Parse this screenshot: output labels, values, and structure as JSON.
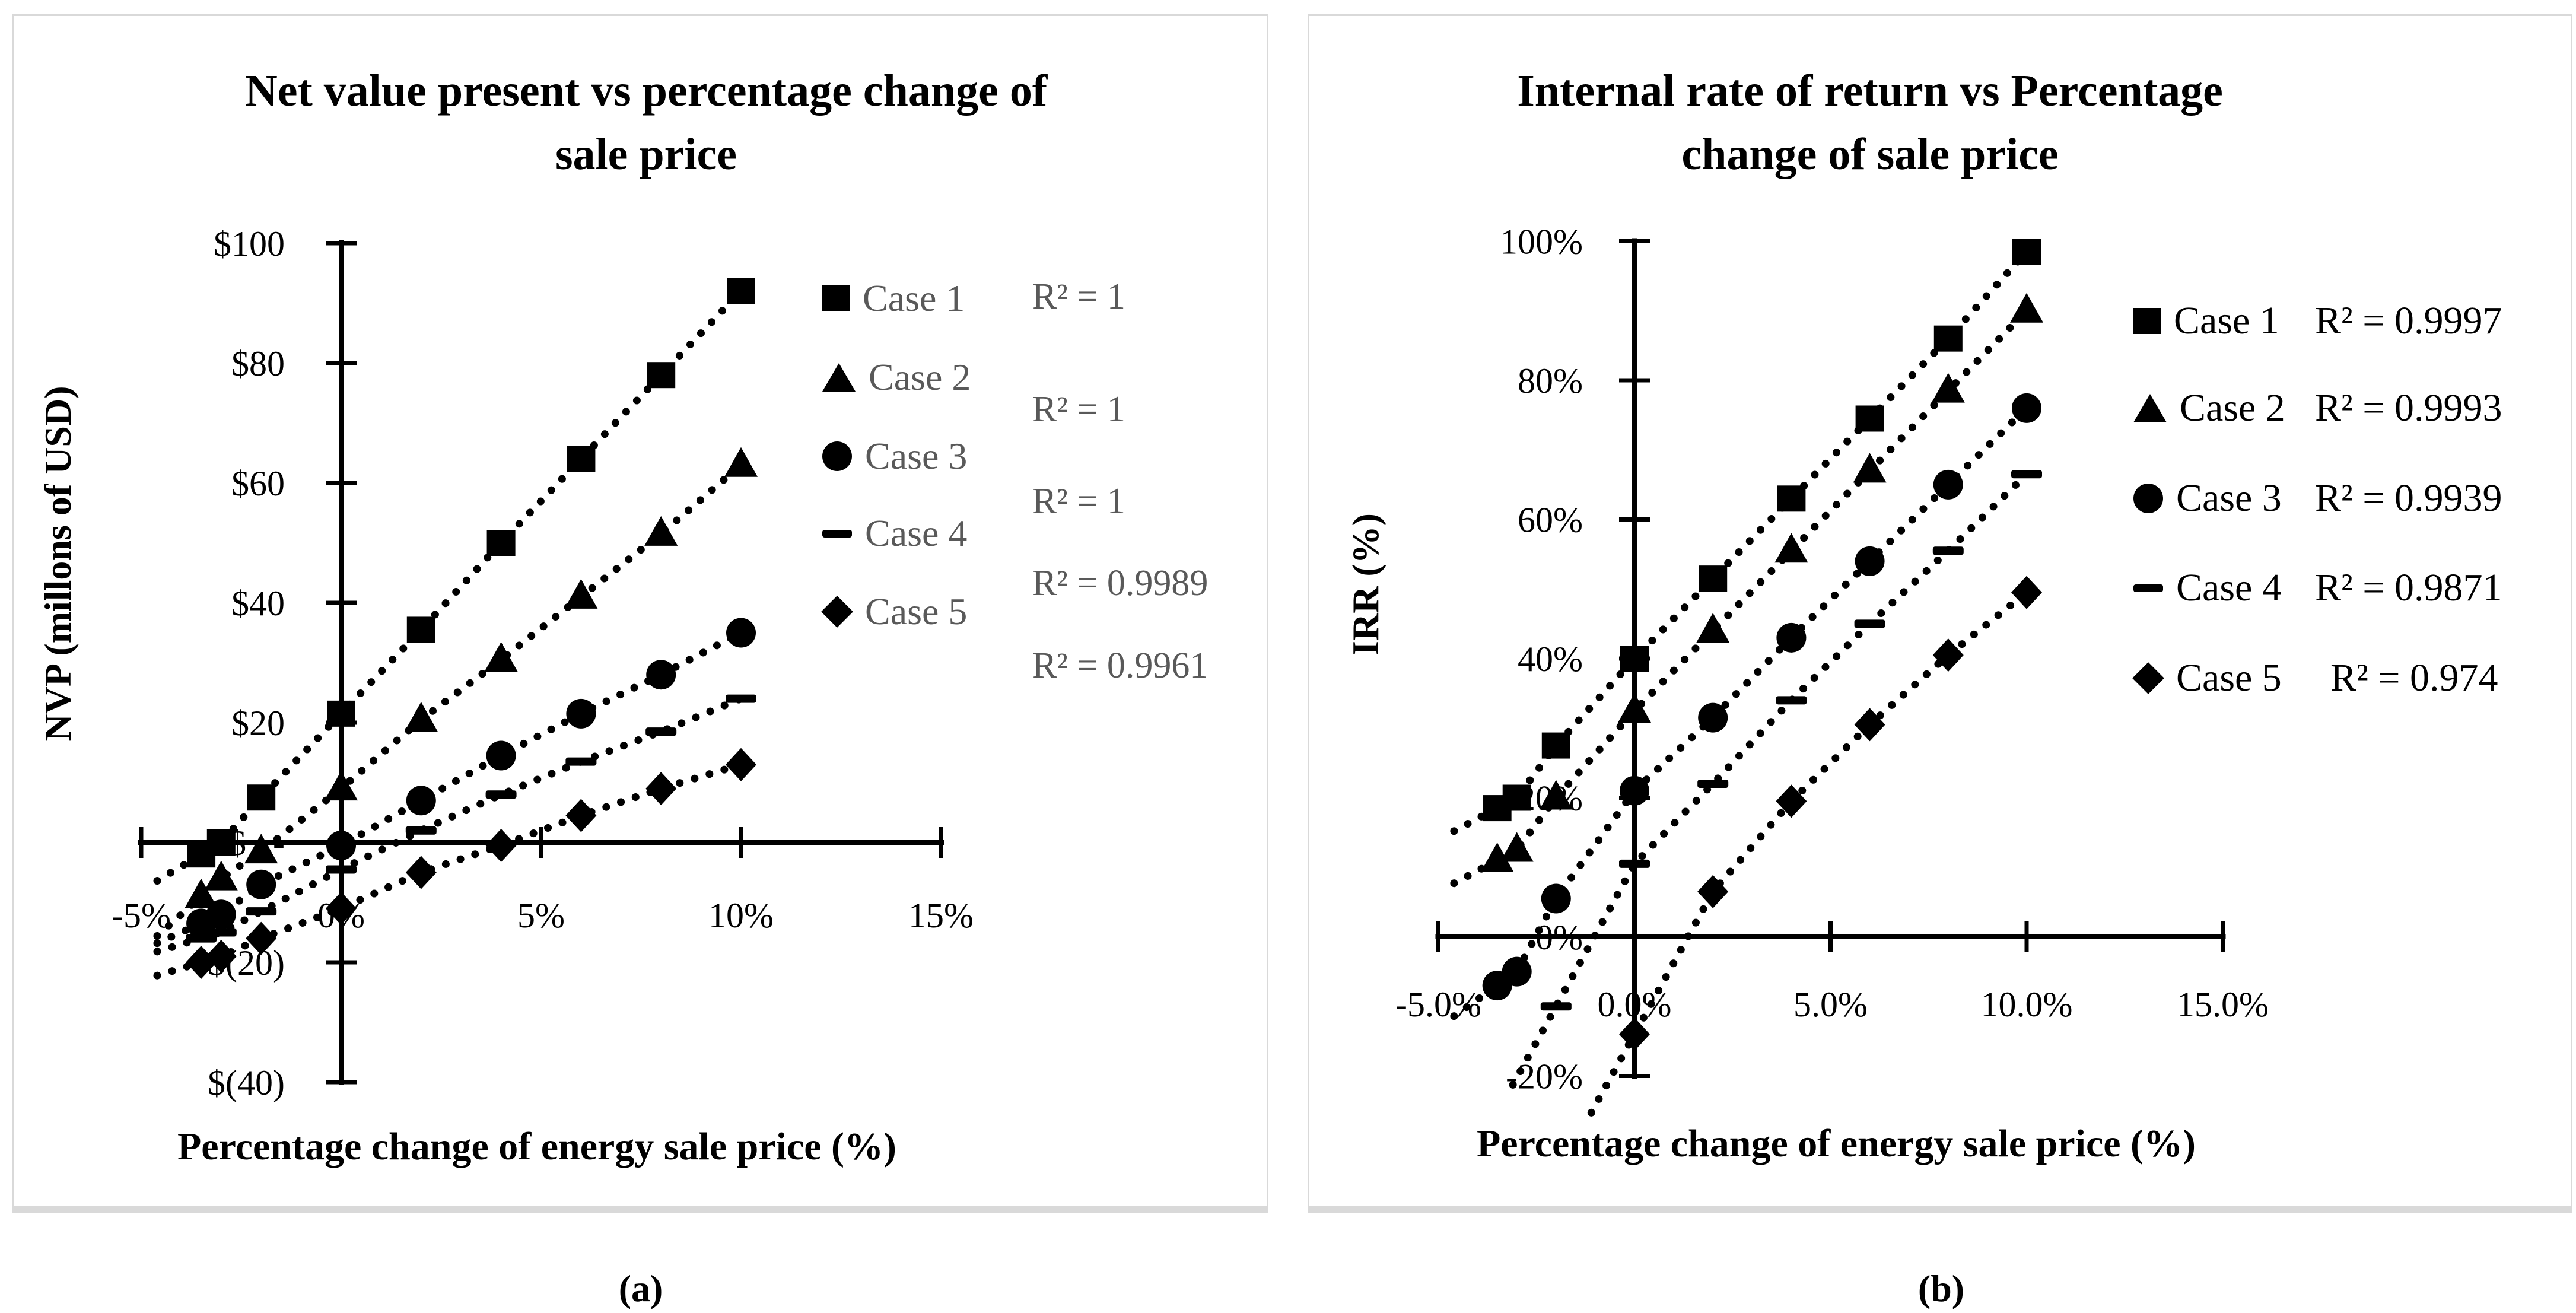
{
  "colors": {
    "marker": "#000000",
    "axis": "#000000",
    "legend_text_left": "#595959",
    "legend_text_right": "#000000",
    "panel_border": "#d9d9d9",
    "background": "#ffffff"
  },
  "captions": {
    "panel_a": "(a)",
    "panel_b": "(b)"
  },
  "chart_data": [
    {
      "type": "scatter",
      "panel": "a",
      "title": "Net value present vs percentage change of sale price",
      "title_lines": [
        "Net value present vs percentage change of",
        "sale price"
      ],
      "xlabel": "Percentage change of energy sale price (%)",
      "ylabel": "NVP (millons of USD)",
      "legend_position": "right-inside",
      "grid": false,
      "xlim": [
        -5,
        15
      ],
      "ylim": [
        -40,
        100
      ],
      "x_tick_labels": [
        "-5%",
        "0%",
        "5%",
        "10%",
        "15%"
      ],
      "x_tick_values": [
        -5,
        0,
        5,
        10,
        15
      ],
      "y_tick_labels": [
        "$100",
        "$80",
        "$60",
        "$40",
        "$20",
        "$   -",
        "$(20)",
        "$(40)"
      ],
      "y_tick_values": [
        100,
        80,
        60,
        40,
        20,
        0,
        -20,
        -40
      ],
      "x": [
        -3.5,
        -3,
        -2,
        0,
        2,
        4,
        6,
        8,
        10
      ],
      "series": [
        {
          "name": "Case 1",
          "marker": "square",
          "r2_label": "R² = 1",
          "values": [
            -2,
            0,
            7.5,
            21.5,
            35.5,
            50,
            64,
            78,
            92
          ]
        },
        {
          "name": "Case 2",
          "marker": "triangle",
          "r2_label": "R² = 1",
          "values": [
            -9,
            -6,
            -1.5,
            9,
            20.5,
            30.5,
            41,
            51.5,
            63
          ]
        },
        {
          "name": "Case 3",
          "marker": "circle",
          "r2_label": "R² = 1",
          "values": [
            -13.5,
            -12,
            -7,
            -0.5,
            7,
            14.5,
            21.5,
            28,
            35
          ]
        },
        {
          "name": "Case 4",
          "marker": "dash",
          "r2_label": "R² = 0.9989",
          "values": [
            -16,
            -15,
            -11.5,
            -4.5,
            2,
            8,
            13.5,
            18.5,
            24
          ]
        },
        {
          "name": "Case 5",
          "marker": "diamond",
          "r2_label": "R² = 0.9961",
          "values": [
            -20,
            -19,
            -16,
            -11,
            -5,
            -0.5,
            4.5,
            9,
            13
          ]
        }
      ]
    },
    {
      "type": "scatter",
      "panel": "b",
      "title": "Internal rate of return vs Percentage change of sale price",
      "title_lines": [
        "Internal rate of return vs Percentage",
        "change of sale price"
      ],
      "xlabel": "Percentage change of energy sale price (%)",
      "ylabel": "IRR (%)",
      "legend_position": "right-inside",
      "grid": false,
      "xlim": [
        -5,
        15
      ],
      "ylim": [
        -20,
        100
      ],
      "x_tick_labels": [
        "-5.0%",
        "0.0%",
        "5.0%",
        "10.0%",
        "15.0%"
      ],
      "x_tick_values": [
        -5,
        0,
        5,
        10,
        15
      ],
      "y_tick_labels": [
        "100%",
        "80%",
        "60%",
        "40%",
        "20%",
        "0%",
        "-20%"
      ],
      "y_tick_values": [
        100,
        80,
        60,
        40,
        20,
        0,
        -20
      ],
      "x": [
        -3.5,
        -3,
        -2,
        0,
        2,
        4,
        6,
        8,
        10
      ],
      "series": [
        {
          "name": "Case 1",
          "marker": "square",
          "r2_label": "R² = 0.9997",
          "values": [
            18.5,
            20,
            27.5,
            40,
            51.5,
            63,
            74.5,
            86,
            98.5
          ]
        },
        {
          "name": "Case 2",
          "marker": "triangle",
          "r2_label": "R² = 0.9993",
          "values": [
            11,
            12.5,
            20,
            32.5,
            44,
            55.5,
            67,
            78.5,
            90
          ]
        },
        {
          "name": "Case 3",
          "marker": "circle",
          "r2_label": "R² = 0.9939",
          "values": [
            -7,
            -5,
            5.5,
            21,
            31.5,
            43,
            54,
            65,
            76
          ]
        },
        {
          "name": "Case 4",
          "marker": "dash",
          "r2_label": "R² = 0.9871",
          "values": [
            null,
            null,
            -10,
            10.5,
            22,
            34,
            45,
            55.5,
            66.5
          ]
        },
        {
          "name": "Case 5",
          "marker": "diamond",
          "r2_label": "R² = 0.974",
          "values": [
            null,
            null,
            null,
            -14,
            6.5,
            19.5,
            30.5,
            40.5,
            49.5
          ]
        }
      ]
    }
  ]
}
